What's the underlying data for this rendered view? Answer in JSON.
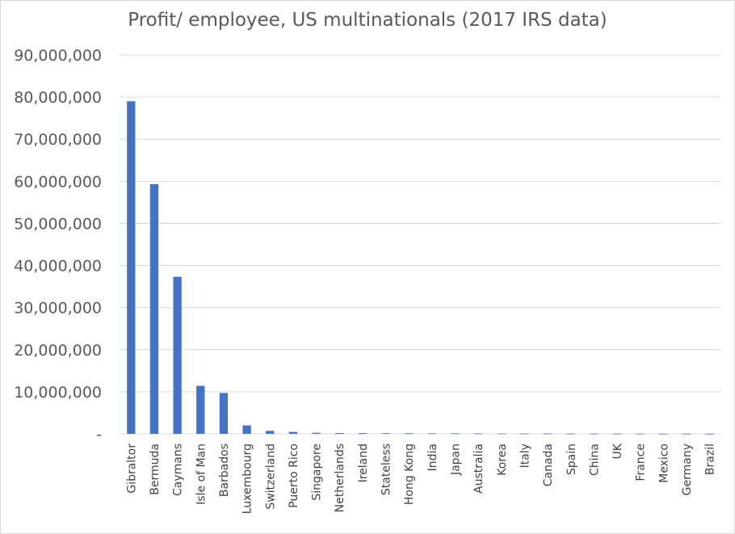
{
  "chart_data": {
    "type": "bar",
    "title": "Profit/ employee, US multinationals (2017 IRS data)",
    "xlabel": "",
    "ylabel": "",
    "ylim": [
      0,
      90000000
    ],
    "yticks": [
      0,
      10000000,
      20000000,
      30000000,
      40000000,
      50000000,
      60000000,
      70000000,
      80000000,
      90000000
    ],
    "ytick_labels": [
      "-",
      "10,000,000",
      "20,000,000",
      "30,000,000",
      "40,000,000",
      "50,000,000",
      "60,000,000",
      "70,000,000",
      "80,000,000",
      "90,000,000"
    ],
    "grid": true,
    "legend": "none",
    "bar_color": "#4472c4",
    "categories": [
      "Gibraltor",
      "Bermuda",
      "Caymans",
      "Isle of Man",
      "Barbados",
      "Luxembourg",
      "Switzerland",
      "Puerto Rico",
      "Singapore",
      "Netherlands",
      "Ireland",
      "Stateless",
      "Hong Kong",
      "India",
      "Japan",
      "Australia",
      "Korea",
      "Italy",
      "Canada",
      "Spain",
      "China",
      "UK",
      "France",
      "Mexico",
      "Germany",
      "Brazil"
    ],
    "values": [
      79000000,
      59300000,
      37300000,
      11400000,
      9700000,
      2000000,
      700000,
      450000,
      250000,
      200000,
      180000,
      160000,
      140000,
      120000,
      110000,
      100000,
      90000,
      80000,
      70000,
      60000,
      50000,
      45000,
      40000,
      35000,
      30000,
      25000
    ]
  }
}
